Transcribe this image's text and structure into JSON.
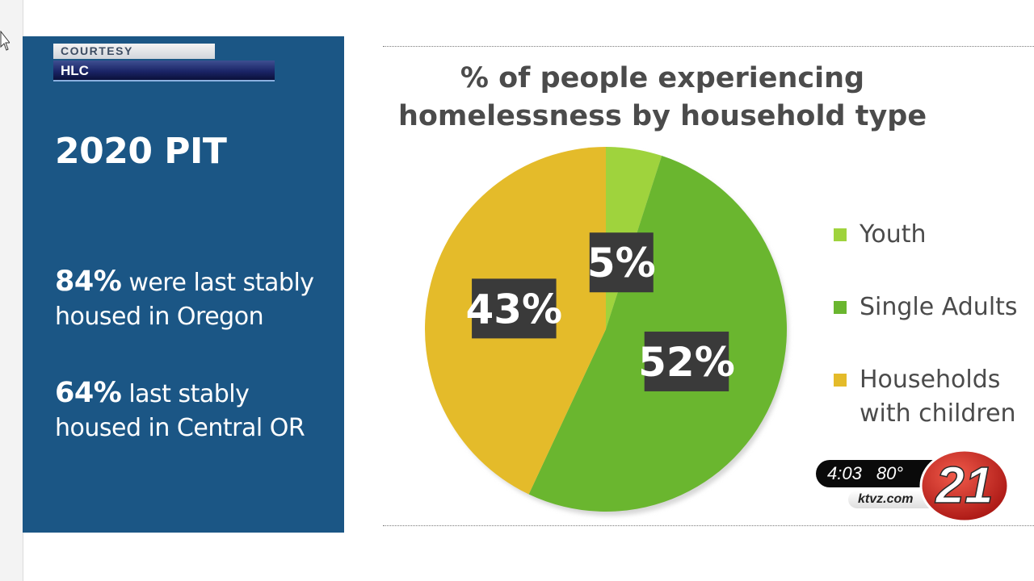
{
  "lower_third": {
    "label": "COURTESY",
    "source": "HLC"
  },
  "side_panel": {
    "heading": "2020 PIT",
    "stats": [
      {
        "value": "84%",
        "text_line1": " were last stably",
        "text_line2": "housed in Oregon"
      },
      {
        "value": "64%",
        "text_line1": " last stably",
        "text_line2": "housed in Central OR"
      }
    ]
  },
  "chart_data": {
    "type": "pie",
    "title": "% of people experiencing homelessness by household type",
    "title_lines": [
      "% of people experiencing",
      "homelessness by household type"
    ],
    "slices": [
      {
        "label": "Youth",
        "value": 5,
        "display": "5%",
        "color": "#9fd33d"
      },
      {
        "label": "Single Adults",
        "value": 52,
        "display": "52%",
        "color": "#6ab62f"
      },
      {
        "label": "Households with children",
        "value": 43,
        "display": "43%",
        "color": "#e4bb2a"
      }
    ],
    "legend": {
      "placement": "right",
      "entries": [
        {
          "lines": [
            "Youth"
          ],
          "color": "#9fd33d"
        },
        {
          "lines": [
            "Single Adults"
          ],
          "color": "#6ab62f"
        },
        {
          "lines": [
            "Households",
            "with children"
          ],
          "color": "#e4bb2a"
        }
      ]
    }
  },
  "station_bug": {
    "time": "4:03",
    "temperature": "80°",
    "website": "ktvz.com",
    "channel": "21"
  },
  "colors": {
    "panel": "#1b5685",
    "title_text": "#4b4b4b",
    "label_box": "#3a3a3a",
    "logo_red": "#cf2a27"
  }
}
